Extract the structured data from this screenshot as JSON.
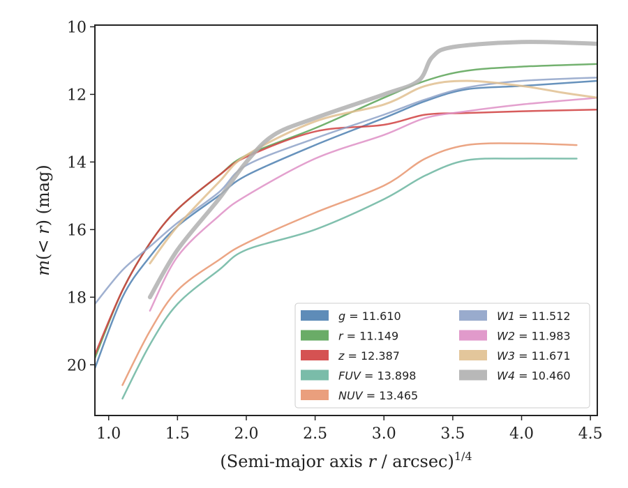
{
  "chart_data": {
    "type": "line",
    "xlabel": "(Semi-major axis r / arcsec)",
    "xlabel_parts": {
      "pre": "(Semi-major axis ",
      "var": "r",
      "post": " / arcsec)",
      "sup": "1/4"
    },
    "ylabel": "m(< r) (mag)",
    "ylabel_parts": {
      "m": "m",
      "open": "(",
      "lt": "< ",
      "r": "r",
      "close": ") (mag)"
    },
    "xlim": [
      0.9,
      4.55
    ],
    "ylim": [
      21.5,
      9.95
    ],
    "y_inverted": true,
    "xticks": [
      1.0,
      1.5,
      2.0,
      2.5,
      3.0,
      3.5,
      4.0,
      4.5
    ],
    "xtick_labels": [
      "1.0",
      "1.5",
      "2.0",
      "2.5",
      "3.0",
      "3.5",
      "4.0",
      "4.5"
    ],
    "yticks": [
      10,
      12,
      14,
      16,
      18,
      20
    ],
    "ytick_labels": [
      "10",
      "12",
      "14",
      "16",
      "18",
      "20"
    ],
    "grid": false,
    "legend_position": "lower-right",
    "series": [
      {
        "name": "g",
        "value": "11.610",
        "color": "#4c7fb0",
        "width": 2.5,
        "points": [
          [
            0.9,
            20.1
          ],
          [
            1.1,
            18.0
          ],
          [
            1.3,
            16.8
          ],
          [
            1.5,
            15.9
          ],
          [
            1.8,
            15.0
          ],
          [
            2.0,
            14.4
          ],
          [
            2.5,
            13.5
          ],
          [
            3.0,
            12.7
          ],
          [
            3.3,
            12.2
          ],
          [
            3.6,
            11.85
          ],
          [
            4.0,
            11.75
          ],
          [
            4.55,
            11.6
          ]
        ]
      },
      {
        "name": "r",
        "value": "11.149",
        "color": "#5aa356",
        "width": 2.5,
        "points": [
          [
            0.9,
            19.8
          ],
          [
            1.1,
            17.8
          ],
          [
            1.3,
            16.4
          ],
          [
            1.5,
            15.4
          ],
          [
            1.8,
            14.4
          ],
          [
            2.0,
            13.8
          ],
          [
            2.5,
            13.0
          ],
          [
            3.0,
            12.1
          ],
          [
            3.3,
            11.6
          ],
          [
            3.6,
            11.3
          ],
          [
            4.0,
            11.18
          ],
          [
            4.55,
            11.1
          ]
        ]
      },
      {
        "name": "z",
        "value": "12.387",
        "color": "#d03f3f",
        "width": 2.5,
        "points": [
          [
            0.9,
            19.7
          ],
          [
            1.1,
            17.8
          ],
          [
            1.3,
            16.4
          ],
          [
            1.5,
            15.4
          ],
          [
            1.8,
            14.4
          ],
          [
            2.0,
            13.85
          ],
          [
            2.5,
            13.1
          ],
          [
            3.0,
            12.9
          ],
          [
            3.3,
            12.6
          ],
          [
            3.6,
            12.55
          ],
          [
            4.0,
            12.5
          ],
          [
            4.55,
            12.45
          ]
        ]
      },
      {
        "name": "FUV",
        "value": "13.898",
        "color": "#6bb5a0",
        "width": 2.5,
        "points": [
          [
            1.1,
            21.0
          ],
          [
            1.3,
            19.4
          ],
          [
            1.5,
            18.2
          ],
          [
            1.8,
            17.2
          ],
          [
            2.0,
            16.6
          ],
          [
            2.5,
            16.0
          ],
          [
            3.0,
            15.1
          ],
          [
            3.3,
            14.4
          ],
          [
            3.6,
            13.95
          ],
          [
            4.0,
            13.9
          ],
          [
            4.4,
            13.9
          ]
        ]
      },
      {
        "name": "NUV",
        "value": "13.465",
        "color": "#e8956f",
        "width": 2.5,
        "points": [
          [
            1.1,
            20.6
          ],
          [
            1.3,
            19.0
          ],
          [
            1.5,
            17.8
          ],
          [
            1.8,
            16.9
          ],
          [
            2.0,
            16.4
          ],
          [
            2.5,
            15.5
          ],
          [
            3.0,
            14.7
          ],
          [
            3.3,
            13.9
          ],
          [
            3.6,
            13.5
          ],
          [
            4.0,
            13.45
          ],
          [
            4.4,
            13.5
          ]
        ]
      },
      {
        "name": "W1",
        "value": "11.512",
        "color": "#8ea2c8",
        "width": 2.5,
        "points": [
          [
            0.9,
            18.2
          ],
          [
            1.1,
            17.2
          ],
          [
            1.3,
            16.5
          ],
          [
            1.5,
            15.8
          ],
          [
            1.8,
            14.9
          ],
          [
            2.0,
            14.1
          ],
          [
            2.5,
            13.3
          ],
          [
            3.0,
            12.6
          ],
          [
            3.3,
            12.15
          ],
          [
            3.6,
            11.8
          ],
          [
            4.0,
            11.6
          ],
          [
            4.55,
            11.5
          ]
        ]
      },
      {
        "name": "W2",
        "value": "11.983",
        "color": "#de8fc5",
        "width": 2.5,
        "points": [
          [
            1.3,
            18.4
          ],
          [
            1.5,
            16.8
          ],
          [
            1.8,
            15.6
          ],
          [
            2.0,
            15.0
          ],
          [
            2.5,
            13.9
          ],
          [
            3.0,
            13.2
          ],
          [
            3.3,
            12.7
          ],
          [
            3.6,
            12.5
          ],
          [
            4.0,
            12.3
          ],
          [
            4.55,
            12.1
          ]
        ]
      },
      {
        "name": "W3",
        "value": "11.671",
        "color": "#e0c090",
        "width": 3,
        "points": [
          [
            1.3,
            17.0
          ],
          [
            1.5,
            15.9
          ],
          [
            1.8,
            14.6
          ],
          [
            2.0,
            13.8
          ],
          [
            2.5,
            12.8
          ],
          [
            3.0,
            12.3
          ],
          [
            3.3,
            11.75
          ],
          [
            3.6,
            11.6
          ],
          [
            4.0,
            11.75
          ],
          [
            4.3,
            11.95
          ],
          [
            4.55,
            12.1
          ]
        ]
      },
      {
        "name": "W4",
        "value": "10.460",
        "color": "#b0b0b0",
        "width": 6,
        "points": [
          [
            1.3,
            18.0
          ],
          [
            1.5,
            16.6
          ],
          [
            1.8,
            15.1
          ],
          [
            2.0,
            14.0
          ],
          [
            2.2,
            13.2
          ],
          [
            2.5,
            12.7
          ],
          [
            3.0,
            12.0
          ],
          [
            3.25,
            11.6
          ],
          [
            3.35,
            10.9
          ],
          [
            3.5,
            10.6
          ],
          [
            4.0,
            10.45
          ],
          [
            4.55,
            10.5
          ]
        ]
      }
    ]
  },
  "colors": {
    "axis": "#222222",
    "legend_border": "#cccccc"
  }
}
